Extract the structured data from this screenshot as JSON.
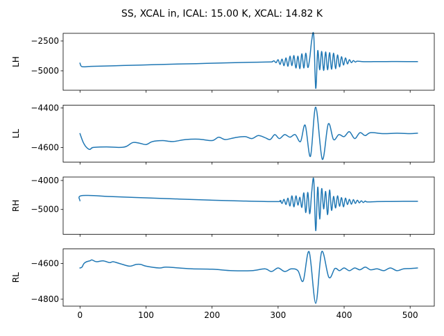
{
  "chart_data": {
    "type": "line",
    "title": "SS, XCAL in, ICAL: 15.00 K, XCAL: 14.82 K",
    "line_color": "#1f77b4",
    "xlim": [
      -25.55,
      536.55
    ],
    "xticks": [
      0,
      100,
      200,
      300,
      400,
      500
    ],
    "xtick_labels": [
      "0",
      "100",
      "200",
      "300",
      "400",
      "500"
    ],
    "grid": false,
    "subplots": [
      {
        "ylabel": "LH",
        "ylim": [
          -6630,
          -1860
        ],
        "yticks": [
          -2500,
          -5000
        ],
        "ytick_labels": [
          "−2500",
          "−5000"
        ],
        "x": [
          0,
          3,
          16,
          32,
          64,
          96,
          128,
          160,
          192,
          224,
          256,
          288,
          291,
          294,
          297,
          300,
          303,
          306,
          309,
          312,
          315,
          318,
          321,
          324,
          327,
          330,
          333,
          336,
          339,
          342,
          345,
          348,
          351,
          354,
          357,
          360,
          363,
          366,
          369,
          372,
          375,
          378,
          381,
          384,
          387,
          390,
          393,
          396,
          399,
          402,
          405,
          408,
          411,
          414,
          417,
          420,
          430,
          448,
          464,
          480,
          496,
          511
        ],
        "y": [
          -4360,
          -4650,
          -4630,
          -4610,
          -4560,
          -4510,
          -4460,
          -4420,
          -4380,
          -4330,
          -4290,
          -4260,
          -4240,
          -4170,
          -4320,
          -4070,
          -4470,
          -4020,
          -4570,
          -3920,
          -4620,
          -3770,
          -4570,
          -3720,
          -4770,
          -3770,
          -4820,
          -3570,
          -4770,
          -3520,
          -4720,
          -3920,
          -2420,
          -2070,
          -6470,
          -3320,
          -4920,
          -3370,
          -4970,
          -3420,
          -4920,
          -3470,
          -4870,
          -3520,
          -4820,
          -3670,
          -4670,
          -3820,
          -4520,
          -3920,
          -4420,
          -4070,
          -4320,
          -4140,
          -4270,
          -4190,
          -4240,
          -4230,
          -4230,
          -4220,
          -4225,
          -4225
        ]
      },
      {
        "ylabel": "LL",
        "ylim": [
          -4674,
          -4386
        ],
        "yticks": [
          -4400,
          -4600
        ],
        "ytick_labels": [
          "−4400",
          "−4600"
        ],
        "x": [
          0,
          5,
          10,
          15,
          20,
          40,
          60,
          70,
          80,
          90,
          100,
          110,
          125,
          140,
          160,
          180,
          200,
          210,
          220,
          235,
          250,
          260,
          270,
          280,
          288,
          295,
          302,
          310,
          318,
          326,
          334,
          341,
          349,
          357,
          367,
          376,
          384,
          392,
          400,
          408,
          416,
          424,
          432,
          440,
          460,
          480,
          500,
          511
        ],
        "y": [
          -4530,
          -4575,
          -4600,
          -4610,
          -4600,
          -4597,
          -4600,
          -4595,
          -4575,
          -4578,
          -4585,
          -4570,
          -4565,
          -4570,
          -4560,
          -4558,
          -4565,
          -4548,
          -4560,
          -4550,
          -4545,
          -4555,
          -4540,
          -4550,
          -4560,
          -4535,
          -4555,
          -4535,
          -4548,
          -4535,
          -4570,
          -4487,
          -4645,
          -4396,
          -4660,
          -4481,
          -4560,
          -4535,
          -4545,
          -4520,
          -4555,
          -4525,
          -4540,
          -4525,
          -4530,
          -4528,
          -4530,
          -4528
        ]
      },
      {
        "ylabel": "RH",
        "ylim": [
          -5857,
          -3881
        ],
        "yticks": [
          -4000,
          -5000
        ],
        "ytick_labels": [
          "−4000",
          "−5000"
        ],
        "x": [
          0,
          3,
          50,
          100,
          150,
          200,
          250,
          300,
          303,
          306,
          309,
          312,
          315,
          318,
          321,
          324,
          327,
          330,
          333,
          336,
          339,
          342,
          345,
          348,
          351,
          354,
          357,
          360,
          363,
          366,
          369,
          372,
          375,
          378,
          381,
          384,
          387,
          390,
          393,
          396,
          399,
          402,
          405,
          408,
          411,
          414,
          417,
          420,
          423,
          426,
          429,
          432,
          435,
          450,
          470,
          490,
          511
        ],
        "y": [
          -4700,
          -4520,
          -4560,
          -4600,
          -4640,
          -4680,
          -4710,
          -4730,
          -4690,
          -4790,
          -4650,
          -4830,
          -4610,
          -4880,
          -4530,
          -4910,
          -4530,
          -4850,
          -4580,
          -4930,
          -4430,
          -5110,
          -4410,
          -5150,
          -4380,
          -3980,
          -5730,
          -4230,
          -5330,
          -4280,
          -4980,
          -4380,
          -5180,
          -4330,
          -5030,
          -4550,
          -4950,
          -4530,
          -4890,
          -4590,
          -4910,
          -4610,
          -4830,
          -4650,
          -4820,
          -4660,
          -4790,
          -4680,
          -4770,
          -4700,
          -4760,
          -4710,
          -4740,
          -4730,
          -4725,
          -4720,
          -4720
        ]
      },
      {
        "ylabel": "RL",
        "ylim": [
          -4839,
          -4518
        ],
        "yticks": [
          -4600,
          -4800
        ],
        "ytick_labels": [
          "−4600",
          "−4800"
        ],
        "x": [
          0,
          3,
          6,
          10,
          15,
          18,
          25,
          35,
          45,
          50,
          60,
          75,
          85,
          92,
          100,
          120,
          130,
          150,
          170,
          200,
          230,
          260,
          280,
          290,
          300,
          310,
          320,
          330,
          338,
          347,
          357,
          366,
          377,
          386,
          393,
          400,
          408,
          416,
          424,
          432,
          440,
          450,
          460,
          470,
          480,
          490,
          500,
          511
        ],
        "y": [
          -4625,
          -4620,
          -4600,
          -4590,
          -4585,
          -4580,
          -4590,
          -4585,
          -4595,
          -4590,
          -4600,
          -4615,
          -4605,
          -4605,
          -4615,
          -4625,
          -4620,
          -4625,
          -4630,
          -4632,
          -4640,
          -4640,
          -4630,
          -4645,
          -4625,
          -4645,
          -4630,
          -4640,
          -4698,
          -4534,
          -4823,
          -4534,
          -4678,
          -4628,
          -4640,
          -4625,
          -4640,
          -4625,
          -4635,
          -4620,
          -4635,
          -4630,
          -4640,
          -4625,
          -4640,
          -4630,
          -4628,
          -4625
        ]
      }
    ]
  }
}
